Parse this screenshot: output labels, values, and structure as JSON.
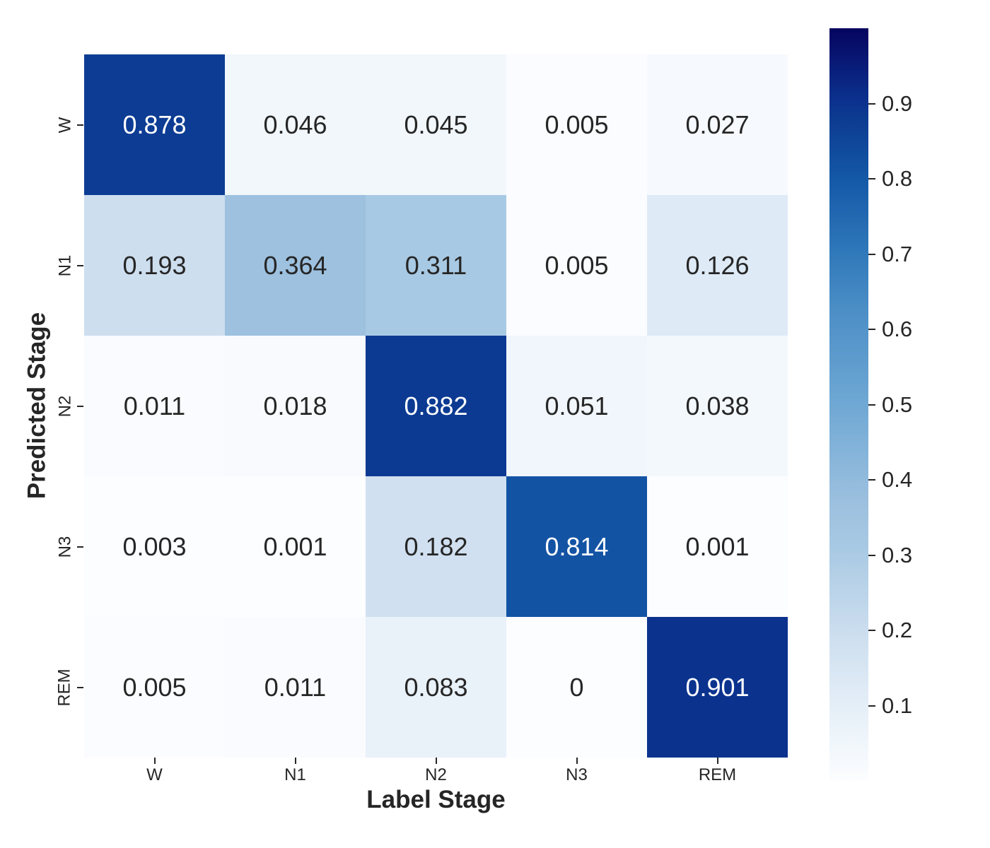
{
  "chart_data": {
    "type": "heatmap",
    "title": "",
    "xlabel": "Label Stage",
    "ylabel": "Predicted Stage",
    "x_categories": [
      "W",
      "N1",
      "N2",
      "N3",
      "REM"
    ],
    "y_categories": [
      "W",
      "N1",
      "N2",
      "N3",
      "REM"
    ],
    "matrix": [
      [
        0.878,
        0.046,
        0.045,
        0.005,
        0.027
      ],
      [
        0.193,
        0.364,
        0.311,
        0.005,
        0.126
      ],
      [
        0.011,
        0.018,
        0.882,
        0.051,
        0.038
      ],
      [
        0.003,
        0.001,
        0.182,
        0.814,
        0.001
      ],
      [
        0.005,
        0.011,
        0.083,
        0,
        0.901
      ]
    ],
    "cell_labels": [
      [
        "0.878",
        "0.046",
        "0.045",
        "0.005",
        "0.027"
      ],
      [
        "0.193",
        "0.364",
        "0.311",
        "0.005",
        "0.126"
      ],
      [
        "0.011",
        "0.018",
        "0.882",
        "0.051",
        "0.038"
      ],
      [
        "0.003",
        "0.001",
        "0.182",
        "0.814",
        "0.001"
      ],
      [
        "0.005",
        "0.011",
        "0.083",
        "0",
        "0.901"
      ]
    ],
    "vmin": 0,
    "vmax": 1,
    "colorbar_ticks": [
      0.9,
      0.8,
      0.7,
      0.6,
      0.5,
      0.4,
      0.3,
      0.2,
      0.1
    ],
    "colorbar_tick_labels": [
      "0.9",
      "0.8",
      "0.7",
      "0.6",
      "0.5",
      "0.4",
      "0.3",
      "0.2",
      "0.1"
    ],
    "legend_position": "right",
    "grid": false,
    "colormap_stops": [
      [
        0.0,
        "#FCFDFF"
      ],
      [
        0.05,
        "#F0F6FB"
      ],
      [
        0.09,
        "#E7F0F8"
      ],
      [
        0.13,
        "#DDE9F5"
      ],
      [
        0.2,
        "#CBDDEE"
      ],
      [
        0.31,
        "#A8C9E3"
      ],
      [
        0.37,
        "#9CC0DF"
      ],
      [
        0.5,
        "#6FA8D4"
      ],
      [
        0.63,
        "#4A8DC6"
      ],
      [
        0.7,
        "#3079BA"
      ],
      [
        0.8,
        "#1458A8"
      ],
      [
        0.88,
        "#0C3B92"
      ],
      [
        0.91,
        "#0B2F8C"
      ],
      [
        1.0,
        "#05045F"
      ]
    ],
    "colors": {
      "annotation_dark": "#262626",
      "annotation_light": "#FFFFFF",
      "tick_color": "#262626",
      "background": "#FFFFFF"
    }
  }
}
